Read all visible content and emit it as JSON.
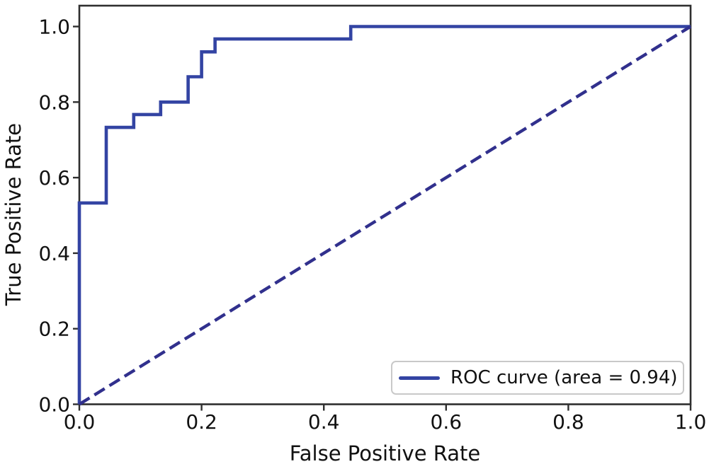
{
  "figure": {
    "background_color": "#ffffff",
    "text_color": "#111111",
    "spine_color": "#2f2f2f",
    "legend_border_color": "#c9c9c9"
  },
  "chart_data": {
    "type": "line",
    "title": "",
    "xlabel": "False Positive Rate",
    "ylabel": "True Positive Rate",
    "xlim": [
      0.0,
      1.0
    ],
    "ylim": [
      0.0,
      1.05
    ],
    "grid": false,
    "x_ticks": [
      0.0,
      0.2,
      0.4,
      0.6,
      0.8,
      1.0
    ],
    "y_ticks": [
      0.0,
      0.2,
      0.4,
      0.6,
      0.8,
      1.0
    ],
    "auc": 0.94,
    "legend": {
      "position": "lower right",
      "entries": [
        "ROC curve (area = 0.94)"
      ]
    },
    "series": [
      {
        "name": "ROC curve (area = 0.94)",
        "kind": "roc-step-curve",
        "line_style": "solid",
        "line_width": 4.6,
        "color": "#3344a3",
        "x": [
          0.0,
          0.0,
          0.044,
          0.044,
          0.089,
          0.089,
          0.133,
          0.133,
          0.178,
          0.178,
          0.2,
          0.2,
          0.222,
          0.222,
          0.444,
          0.444,
          1.0
        ],
        "y": [
          0.0,
          0.533,
          0.533,
          0.733,
          0.733,
          0.767,
          0.767,
          0.8,
          0.8,
          0.867,
          0.867,
          0.933,
          0.933,
          0.967,
          0.967,
          1.0,
          1.0
        ]
      },
      {
        "name": "chance-diagonal",
        "kind": "reference-diagonal",
        "line_style": "dashed",
        "dash_pattern": [
          17,
          8
        ],
        "line_width": 4.4,
        "color": "#31308d",
        "x": [
          0.0,
          1.0
        ],
        "y": [
          0.0,
          1.0
        ]
      }
    ]
  }
}
